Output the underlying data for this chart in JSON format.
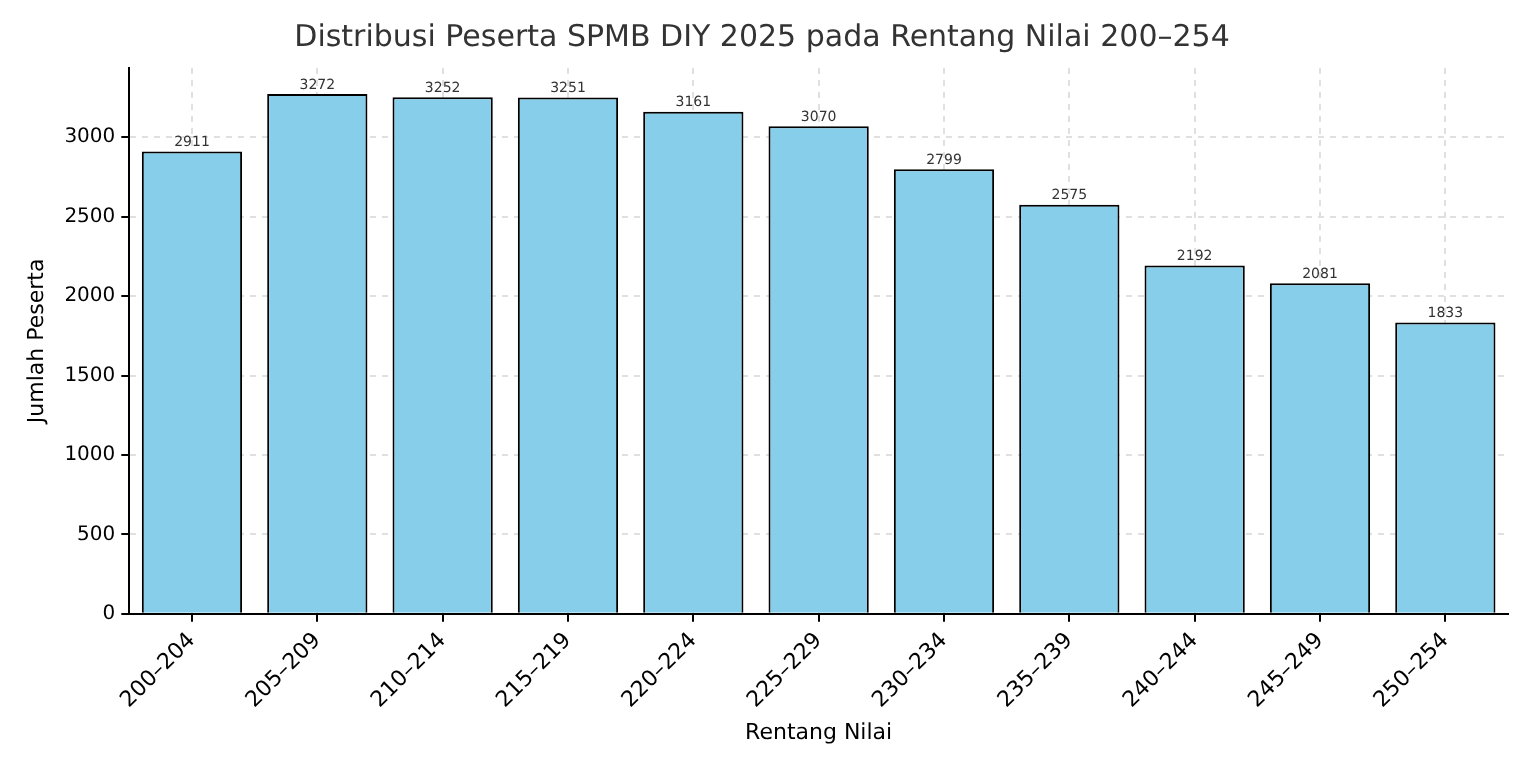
{
  "chart_data": {
    "type": "bar",
    "title": "Distribusi Peserta SPMB DIY 2025 pada Rentang Nilai 200–254",
    "xlabel": "Rentang Nilai",
    "ylabel": "Jumlah Peserta",
    "categories": [
      "200–204",
      "205–209",
      "210–214",
      "215–219",
      "220–224",
      "225–229",
      "230–234",
      "235–239",
      "240–244",
      "245–249",
      "250–254"
    ],
    "values": [
      2911,
      3272,
      3252,
      3251,
      3161,
      3070,
      2799,
      2575,
      2192,
      2081,
      1833
    ],
    "color": "#87ceeb",
    "ylim": [
      0,
      3436
    ],
    "yticks": [
      0,
      500,
      1000,
      1500,
      2000,
      2500,
      3000
    ],
    "grid": true,
    "data_labels": true,
    "legend": false
  }
}
